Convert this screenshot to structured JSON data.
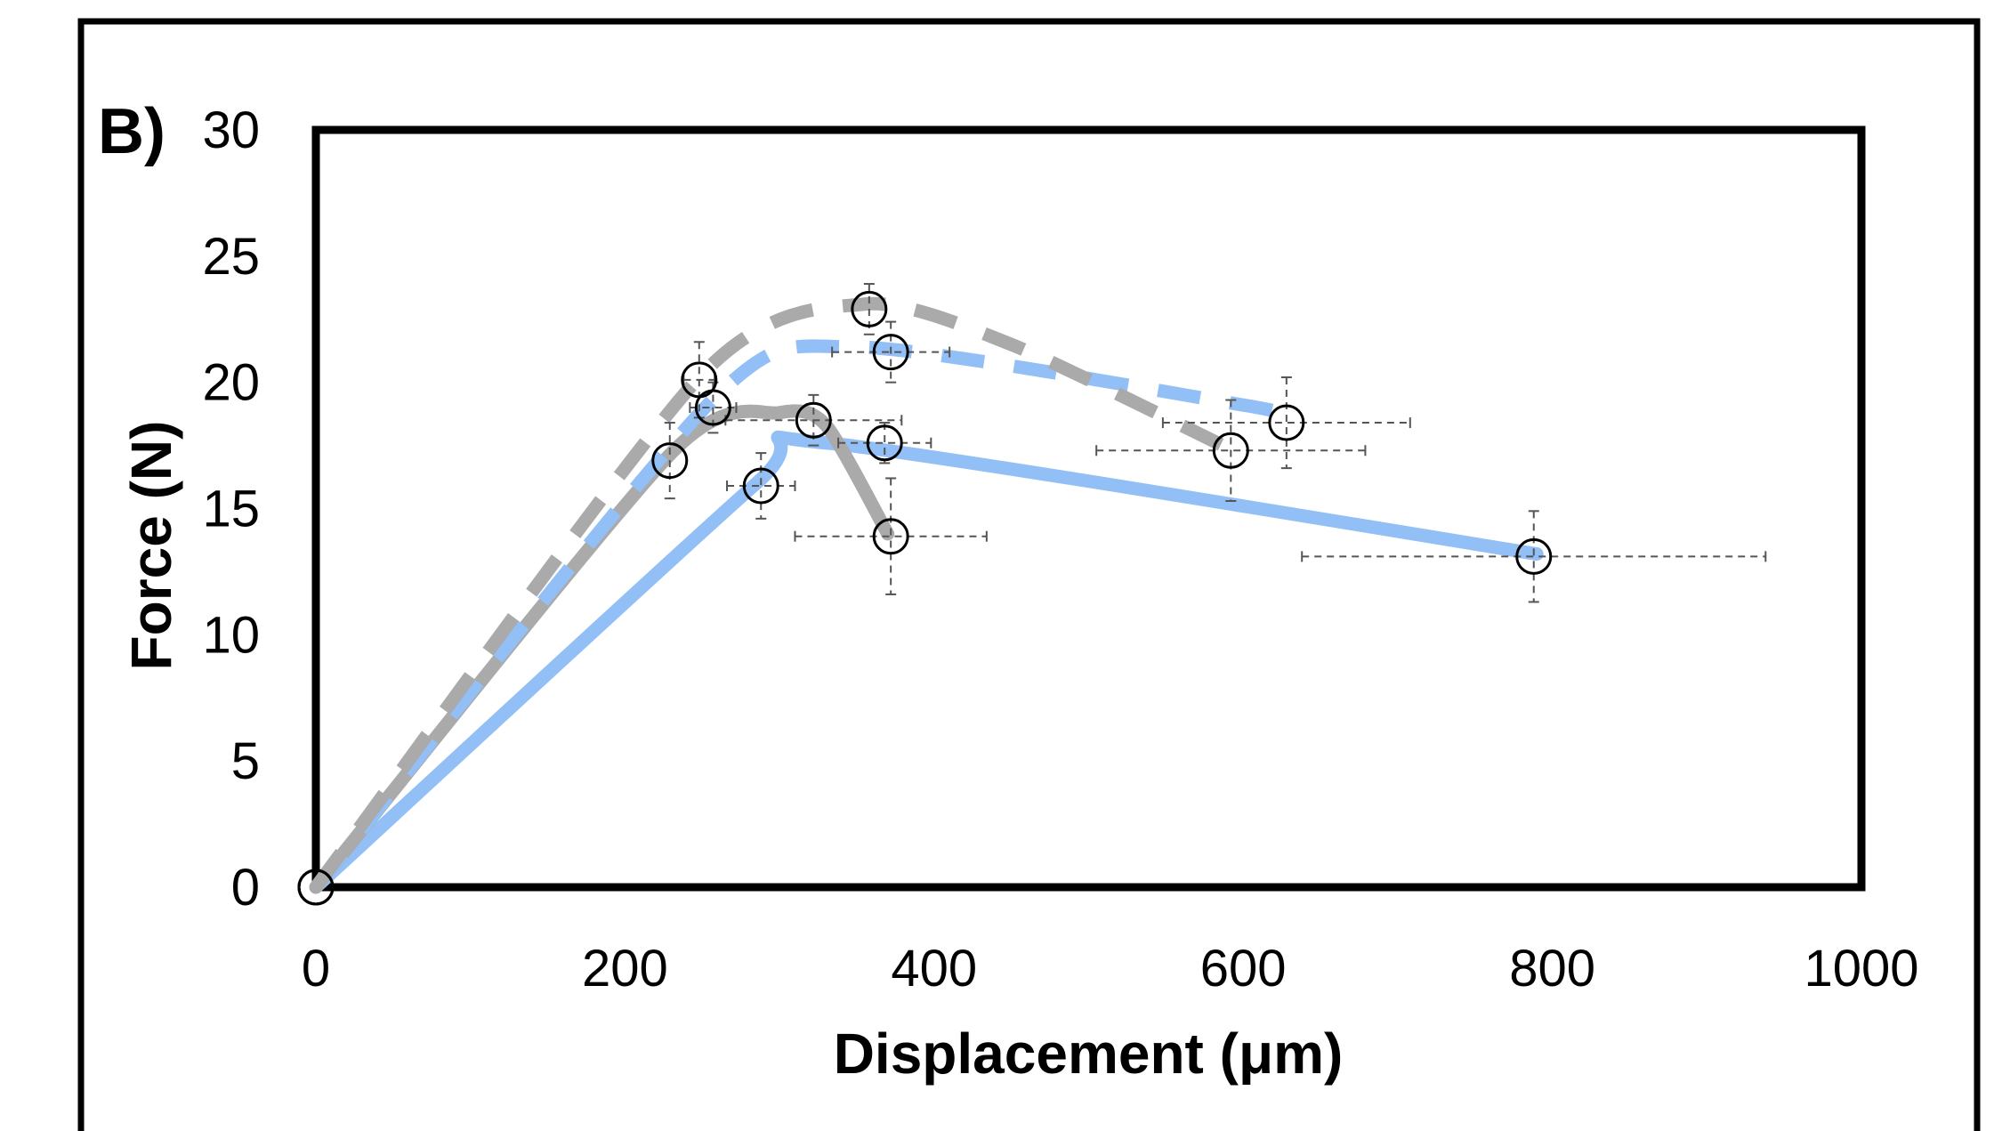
{
  "panel_label": "B)",
  "colors": {
    "blue": "#92BFF6",
    "gray": "#AAAAAA",
    "marker": "#000000",
    "errorbar": "#555555"
  },
  "chart_data": {
    "type": "line",
    "title": "",
    "xlabel": "Displacement (μm)",
    "ylabel": "Force (N)",
    "xlim": [
      0,
      1000
    ],
    "ylim": [
      0,
      30
    ],
    "xticks": [
      "0",
      "200",
      "400",
      "600",
      "800",
      "1000"
    ],
    "yticks": [
      "0",
      "5",
      "10",
      "15",
      "20",
      "25",
      "30"
    ],
    "grid": false,
    "legend": "none",
    "series": [
      {
        "color": "blue",
        "dash": "solid",
        "curve": [
          [
            0,
            0
          ],
          [
            285,
            16
          ],
          [
            330,
            17.6
          ],
          [
            790,
            13.2
          ]
        ],
        "points": [
          {
            "x": 0,
            "y": 0
          },
          {
            "x": 288,
            "y": 15.9,
            "xerr": 22,
            "yerr": 1.3
          },
          {
            "x": 368,
            "y": 17.6,
            "xerr": 30,
            "yerr": 0.8
          },
          {
            "x": 788,
            "y": 13.1,
            "xerr": 150,
            "yerr": 1.8
          }
        ]
      },
      {
        "color": "gray",
        "dash": "solid",
        "curve": [
          [
            0,
            0
          ],
          [
            230,
            17.2
          ],
          [
            300,
            18.8
          ],
          [
            330,
            18.3
          ],
          [
            370,
            14
          ]
        ],
        "points": [
          {
            "x": 0,
            "y": 0
          },
          {
            "x": 229,
            "y": 16.9,
            "xerr": 0,
            "yerr": 1.5
          },
          {
            "x": 322,
            "y": 18.5,
            "xerr": 57,
            "yerr": 1
          },
          {
            "x": 372,
            "y": 13.9,
            "xerr": 62,
            "yerr": 2.3
          }
        ]
      },
      {
        "color": "blue",
        "dash": "dashed",
        "curve": [
          [
            0,
            0
          ],
          [
            255,
            19.2
          ],
          [
            350,
            21.4
          ],
          [
            600,
            19.1
          ],
          [
            630,
            18.6
          ]
        ],
        "points": [
          {
            "x": 0,
            "y": 0
          },
          {
            "x": 257,
            "y": 19,
            "xerr": 15,
            "yerr": 1
          },
          {
            "x": 372,
            "y": 21.2,
            "xerr": 38,
            "yerr": 1.2
          },
          {
            "x": 628,
            "y": 18.4,
            "xerr": 80,
            "yerr": 1.8
          }
        ]
      },
      {
        "color": "gray",
        "dash": "dashed",
        "curve": [
          [
            0,
            0
          ],
          [
            248,
            20.2
          ],
          [
            355,
            23.1
          ],
          [
            450,
            21.5
          ],
          [
            590,
            17.4
          ]
        ],
        "points": [
          {
            "x": 0,
            "y": 0
          },
          {
            "x": 248,
            "y": 20.1,
            "xerr": 10,
            "yerr": 1.5
          },
          {
            "x": 358,
            "y": 22.9,
            "xerr": 0,
            "yerr": 1
          },
          {
            "x": 592,
            "y": 17.3,
            "xerr": 87,
            "yerr": 2
          }
        ]
      }
    ]
  }
}
